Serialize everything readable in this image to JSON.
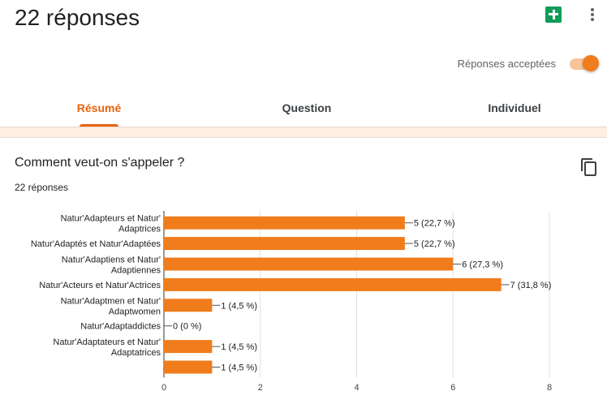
{
  "header": {
    "title": "22 réponses",
    "accepting_label": "Réponses acceptées",
    "accepting": true,
    "icons": {
      "sheets": "google-sheets-icon",
      "more": "more-vert-icon"
    }
  },
  "tabs": [
    {
      "label": "Résumé",
      "active": true
    },
    {
      "label": "Question",
      "active": false
    },
    {
      "label": "Individuel",
      "active": false
    }
  ],
  "question": {
    "title": "Comment veut-on s'appeler ?",
    "response_count": "22 réponses",
    "copy_icon": "copy-icon"
  },
  "colors": {
    "accent": "#e8630a",
    "bar": "#f07c1c",
    "grid": "#e0e0e0"
  },
  "chart_data": {
    "type": "bar",
    "orientation": "horizontal",
    "categories": [
      [
        "Natur'Adapteurs et Natur'",
        "Adaptrices"
      ],
      [
        "Natur'Adaptés et Natur'Adaptées"
      ],
      [
        "Natur'Adaptiens et Natur'",
        "Adaptiennes"
      ],
      [
        "Natur'Acteurs et Natur'Actrices"
      ],
      [
        "Natur'Adaptmen et Natur'",
        "Adaptwomen"
      ],
      [
        "Natur'Adaptaddictes"
      ],
      [
        "Natur'Adaptateurs et Natur'",
        "Adaptatrices"
      ],
      [
        ""
      ]
    ],
    "values": [
      5,
      5,
      6,
      7,
      1,
      0,
      1,
      1
    ],
    "data_labels": [
      "5 (22,7 %)",
      "5 (22,7 %)",
      "6 (27,3 %)",
      "7 (31,8 %)",
      "1 (4,5 %)",
      "0 (0 %)",
      "1 (4,5 %)",
      "1 (4,5 %)"
    ],
    "x_ticks": [
      0,
      2,
      4,
      6,
      8
    ],
    "xlim": [
      0,
      8
    ],
    "grid": true,
    "legend": "none"
  }
}
